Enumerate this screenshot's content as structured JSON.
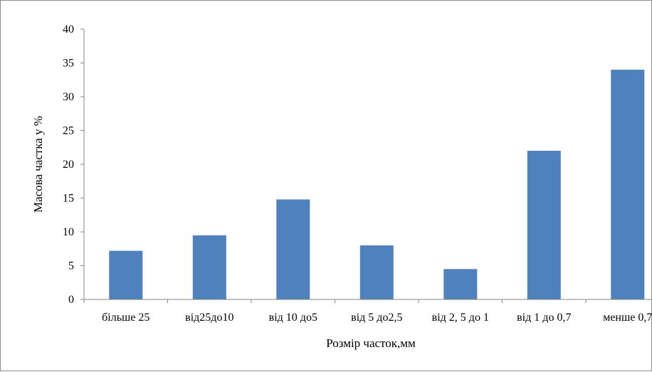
{
  "chart_data": {
    "type": "bar",
    "categories": [
      "більше 25",
      "від25до10",
      "від 10 до5",
      "від 5 до2,5",
      "від 2, 5 до 1",
      "від 1 до 0,7",
      "менше 0,7"
    ],
    "values": [
      7.2,
      9.5,
      14.8,
      8.0,
      4.5,
      22.0,
      34.0
    ],
    "title": "",
    "xlabel": "Розмір часток,мм",
    "ylabel": "Масова частка у %",
    "ylim": [
      0,
      40
    ],
    "yticks": [
      0,
      5,
      10,
      15,
      20,
      25,
      30,
      35,
      40
    ],
    "bar_color": "#4f81bd",
    "axis_color": "#868686",
    "grid": false,
    "legend": "none"
  }
}
